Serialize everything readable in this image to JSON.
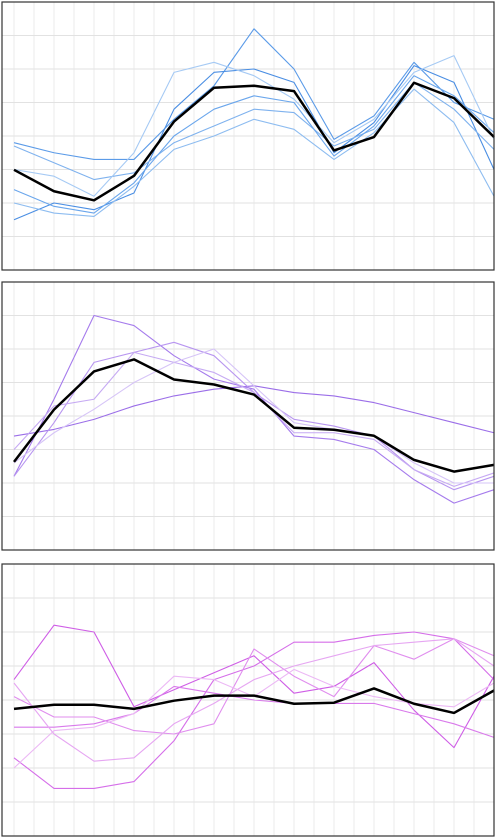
{
  "chart_data": [
    {
      "type": "line",
      "grid": true,
      "x": [
        0,
        1,
        2,
        3,
        4,
        5,
        6,
        7,
        8,
        9,
        10,
        11,
        12
      ],
      "xlim": [
        -0.3,
        12.0
      ],
      "xticks": [
        0,
        0.5,
        1,
        1.5,
        2,
        2.5,
        3,
        3.5,
        4,
        4.5,
        5,
        5.5,
        6,
        6.5,
        7,
        7.5,
        8,
        8.5,
        9,
        9.5,
        10,
        10.5,
        11,
        11.5,
        12
      ],
      "ylim": [
        0,
        8
      ],
      "yticks": [
        0,
        1,
        2,
        3,
        4,
        5,
        6,
        7,
        8
      ],
      "series": [
        {
          "color": "#5b9be8",
          "values": [
            3.8,
            3.5,
            3.3,
            3.3,
            4.5,
            5.5,
            7.2,
            6.0,
            3.9,
            4.6,
            6.2,
            5.0,
            4.5
          ]
        },
        {
          "color": "#4a8ee3",
          "values": [
            1.5,
            2.0,
            1.8,
            2.3,
            4.8,
            5.9,
            6.0,
            5.6,
            3.5,
            4.4,
            6.1,
            5.6,
            3.0
          ]
        },
        {
          "color": "#7fb2ee",
          "values": [
            3.7,
            3.2,
            2.7,
            2.9,
            3.8,
            4.3,
            4.8,
            4.7,
            3.7,
            4.2,
            5.6,
            4.8,
            3.6
          ]
        },
        {
          "color": "#6aa6ec",
          "values": [
            2.4,
            1.9,
            1.7,
            2.6,
            4.0,
            4.8,
            5.2,
            5.0,
            3.4,
            4.3,
            5.8,
            5.2,
            4.1
          ]
        },
        {
          "color": "#8dbcf0",
          "values": [
            2.0,
            1.7,
            1.6,
            2.5,
            3.6,
            4.0,
            4.5,
            4.2,
            3.3,
            4.1,
            5.4,
            4.4,
            2.2
          ]
        },
        {
          "color": "#a6caf4",
          "values": [
            3.0,
            2.8,
            2.2,
            3.5,
            5.9,
            6.2,
            5.8,
            5.1,
            3.8,
            4.5,
            5.9,
            6.4,
            3.9
          ]
        },
        {
          "color": "#000000",
          "values": [
            2.99,
            2.35,
            2.08,
            2.81,
            4.43,
            5.44,
            5.5,
            5.34,
            3.57,
            3.97,
            5.59,
            5.13,
            3.97
          ]
        }
      ]
    },
    {
      "type": "line",
      "grid": true,
      "x": [
        0,
        1,
        2,
        3,
        4,
        5,
        6,
        7,
        8,
        9,
        10,
        11,
        12
      ],
      "xlim": [
        -0.3,
        12.0
      ],
      "xticks": [
        0,
        0.5,
        1,
        1.5,
        2,
        2.5,
        3,
        3.5,
        4,
        4.5,
        5,
        5.5,
        6,
        6.5,
        7,
        7.5,
        8,
        8.5,
        9,
        9.5,
        10,
        10.5,
        11,
        11.5,
        12
      ],
      "ylim": [
        0,
        8
      ],
      "yticks": [
        0,
        1,
        2,
        3,
        4,
        5,
        6,
        7,
        8
      ],
      "series": [
        {
          "color": "#9b6ee8",
          "values": [
            3.4,
            3.6,
            3.9,
            4.3,
            4.6,
            4.8,
            4.9,
            4.7,
            4.6,
            4.4,
            4.1,
            3.8,
            3.5
          ]
        },
        {
          "color": "#a57bec",
          "values": [
            2.2,
            4.5,
            7.0,
            6.7,
            5.8,
            5.1,
            4.8,
            3.4,
            3.3,
            3.0,
            2.1,
            1.4,
            1.8
          ]
        },
        {
          "color": "#b896f0",
          "values": [
            2.2,
            3.8,
            5.6,
            5.9,
            6.2,
            5.8,
            4.7,
            3.9,
            3.7,
            3.4,
            2.4,
            1.8,
            2.2
          ]
        },
        {
          "color": "#c6aaf3",
          "values": [
            3.0,
            4.3,
            4.5,
            5.9,
            5.6,
            5.3,
            4.7,
            3.5,
            3.5,
            3.3,
            2.4,
            1.9,
            2.3
          ]
        },
        {
          "color": "#d6c4f7",
          "values": [
            2.6,
            3.5,
            4.2,
            5.0,
            5.6,
            6.0,
            4.9,
            3.8,
            3.6,
            3.4,
            2.6,
            2.0,
            2.0
          ]
        },
        {
          "color": "#000000",
          "values": [
            2.63,
            4.19,
            5.33,
            5.69,
            5.09,
            4.94,
            4.64,
            3.65,
            3.59,
            3.41,
            2.69,
            2.34,
            2.54
          ]
        }
      ]
    },
    {
      "type": "line",
      "grid": true,
      "x": [
        0,
        1,
        2,
        3,
        4,
        5,
        6,
        7,
        8,
        9,
        10,
        11,
        12
      ],
      "xlim": [
        -0.3,
        12.0
      ],
      "xticks": [
        0,
        0.5,
        1,
        1.5,
        2,
        2.5,
        3,
        3.5,
        4,
        4.5,
        5,
        5.5,
        6,
        6.5,
        7,
        7.5,
        8,
        8.5,
        9,
        9.5,
        10,
        10.5,
        11,
        11.5,
        12
      ],
      "ylim": [
        0,
        8
      ],
      "yticks": [
        0,
        1,
        2,
        3,
        4,
        5,
        6,
        7,
        8
      ],
      "series": [
        {
          "color": "#cf5ee6",
          "values": [
            4.6,
            6.2,
            6.0,
            3.8,
            4.3,
            4.8,
            5.3,
            4.2,
            4.4,
            5.1,
            3.7,
            2.6,
            4.7
          ]
        },
        {
          "color": "#d56ee9",
          "values": [
            2.3,
            1.4,
            1.4,
            1.6,
            2.8,
            4.6,
            5.0,
            5.7,
            5.7,
            5.9,
            6.0,
            5.8,
            4.6
          ]
        },
        {
          "color": "#d97aeb",
          "values": [
            3.2,
            3.2,
            3.3,
            3.6,
            4.4,
            4.2,
            4.0,
            3.9,
            3.9,
            3.9,
            3.6,
            3.3,
            2.9
          ]
        },
        {
          "color": "#e08eee",
          "values": [
            4.1,
            3.5,
            3.5,
            3.1,
            3.0,
            3.3,
            5.5,
            4.7,
            4.1,
            5.6,
            5.2,
            5.8,
            5.3
          ]
        },
        {
          "color": "#e6a6f2",
          "values": [
            4.5,
            3.0,
            2.2,
            2.3,
            3.3,
            3.9,
            4.6,
            5.0,
            5.3,
            5.6,
            5.7,
            5.8,
            5.0
          ]
        },
        {
          "color": "#ecb8f5",
          "values": [
            2.0,
            3.1,
            3.2,
            3.6,
            4.7,
            4.6,
            4.1,
            4.9,
            4.4,
            4.1,
            3.9,
            3.8,
            4.5
          ]
        },
        {
          "color": "#000000",
          "values": [
            3.74,
            3.86,
            3.86,
            3.74,
            3.98,
            4.13,
            4.13,
            3.89,
            3.92,
            4.34,
            3.89,
            3.62,
            4.28
          ]
        }
      ]
    }
  ]
}
